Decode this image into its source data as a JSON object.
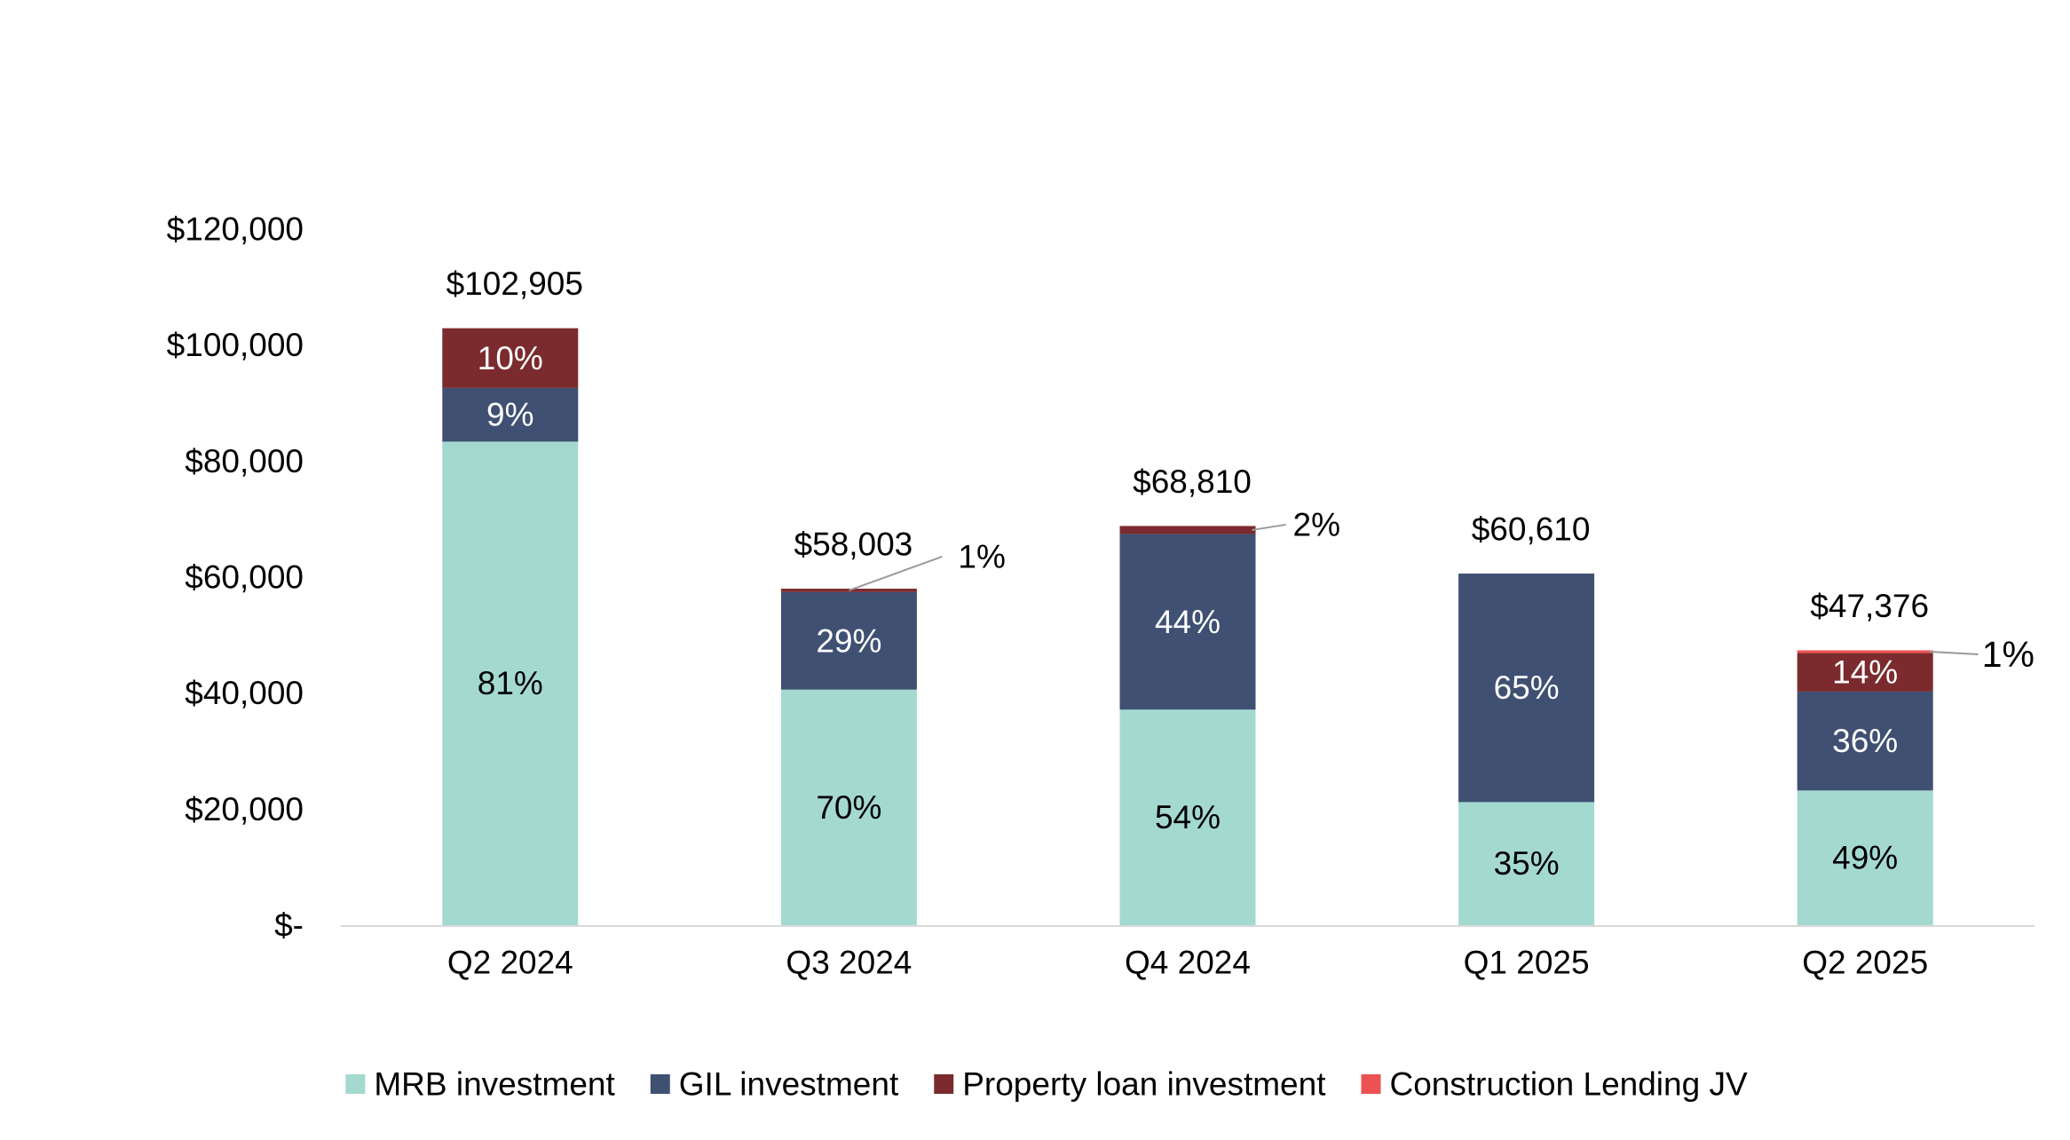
{
  "chart_data": {
    "type": "stacked-bar",
    "title": "",
    "xlabel": "",
    "ylabel": "",
    "ylim": [
      0,
      120000
    ],
    "yticks": [
      {
        "value": 0,
        "label": "$-"
      },
      {
        "value": 20000,
        "label": "$20,000"
      },
      {
        "value": 40000,
        "label": "$40,000"
      },
      {
        "value": 60000,
        "label": "$60,000"
      },
      {
        "value": 80000,
        "label": "$80,000"
      },
      {
        "value": 100000,
        "label": "$100,000"
      },
      {
        "value": 120000,
        "label": "$120,000"
      }
    ],
    "grid": false,
    "legend_position": "bottom",
    "categories": [
      "Q2 2024",
      "Q3 2024",
      "Q4 2024",
      "Q1 2025",
      "Q2 2025"
    ],
    "totals": [
      102905,
      58003,
      68810,
      60610,
      47376
    ],
    "total_labels": [
      "$102,905",
      "$58,003",
      "$68,810",
      "$60,610",
      "$47,376"
    ],
    "series": [
      {
        "name": "MRB investment",
        "color": "#a4d9d0",
        "label_color": "#000000",
        "values": [
          83355,
          40602,
          37157,
          21214,
          23214
        ],
        "labels": [
          "81%",
          "70%",
          "54%",
          "35%",
          "49%"
        ]
      },
      {
        "name": "GIL investment",
        "color": "#3f5072",
        "label_color": "#ffffff",
        "values": [
          9261,
          16821,
          30276,
          39396,
          17055
        ],
        "labels": [
          "9%",
          "29%",
          "44%",
          "65%",
          "36%"
        ]
      },
      {
        "name": "Property loan investment",
        "color": "#7b2b2e",
        "label_color": "#ffffff",
        "values": [
          10289,
          580,
          1377,
          0,
          6633
        ],
        "labels": [
          "10%",
          "1%",
          "2%",
          "",
          "14%"
        ],
        "callout": [
          false,
          true,
          true,
          false,
          false
        ]
      },
      {
        "name": "Construction Lending JV",
        "color": "#ec5252",
        "label_color": "#000000",
        "values": [
          0,
          0,
          0,
          0,
          474
        ],
        "labels": [
          "",
          "",
          "",
          "",
          "1%"
        ],
        "callout": [
          false,
          false,
          false,
          false,
          true
        ]
      }
    ]
  }
}
